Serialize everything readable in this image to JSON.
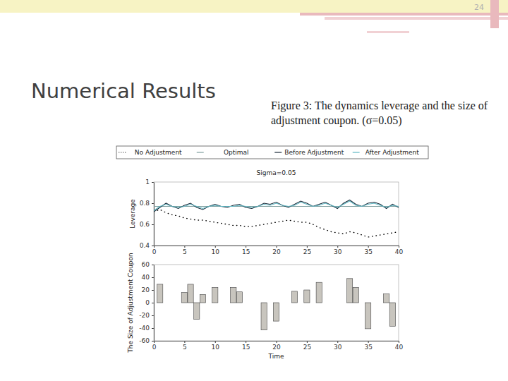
{
  "slide": {
    "title": "Numerical Results",
    "caption": "Figure 3: The dynamics leverage and the size of adjustment coupon. (σ=0.05)",
    "page": "24"
  },
  "chart_data": [
    {
      "type": "line",
      "title": "Sigma=0.05",
      "ylabel": "Leverage",
      "legend": "top",
      "x": [
        0,
        1,
        2,
        3,
        4,
        5,
        6,
        7,
        8,
        9,
        10,
        11,
        12,
        13,
        14,
        15,
        16,
        17,
        18,
        19,
        20,
        21,
        22,
        23,
        24,
        25,
        26,
        27,
        28,
        29,
        30,
        31,
        32,
        33,
        34,
        35,
        36,
        37,
        38,
        39,
        40
      ],
      "xlim": [
        0,
        40
      ],
      "xticks": [
        0,
        5,
        10,
        15,
        20,
        25,
        30,
        35,
        40
      ],
      "ylim": [
        0.4,
        1
      ],
      "yticks": [
        0.4,
        0.6,
        0.8,
        1
      ],
      "series": [
        {
          "name": "No Adjustment",
          "color": "#000000",
          "line_style": "dotted",
          "values": [
            0.72,
            0.74,
            0.71,
            0.69,
            0.68,
            0.66,
            0.65,
            0.64,
            0.64,
            0.63,
            0.62,
            0.61,
            0.6,
            0.59,
            0.59,
            0.58,
            0.58,
            0.59,
            0.6,
            0.61,
            0.62,
            0.63,
            0.64,
            0.63,
            0.62,
            0.62,
            0.6,
            0.57,
            0.55,
            0.53,
            0.52,
            0.51,
            0.53,
            0.52,
            0.5,
            0.48,
            0.49,
            0.5,
            0.51,
            0.52,
            0.53
          ]
        },
        {
          "name": "Optimal",
          "color": "#7f9f9f",
          "line_style": "solid",
          "values": [
            0.77,
            0.77,
            0.77,
            0.77,
            0.77,
            0.77,
            0.77,
            0.77,
            0.77,
            0.77,
            0.77,
            0.77,
            0.77,
            0.77,
            0.77,
            0.77,
            0.77,
            0.77,
            0.77,
            0.77,
            0.77,
            0.77,
            0.77,
            0.77,
            0.77,
            0.77,
            0.77,
            0.77,
            0.77,
            0.77,
            0.77,
            0.77,
            0.77,
            0.77,
            0.77,
            0.77,
            0.77,
            0.77,
            0.77,
            0.77,
            0.77
          ]
        },
        {
          "name": "Before Adjustment",
          "color": "#1c2b3a",
          "line_style": "solid",
          "values": [
            0.72,
            0.76,
            0.8,
            0.77,
            0.75,
            0.78,
            0.8,
            0.76,
            0.74,
            0.77,
            0.79,
            0.77,
            0.76,
            0.78,
            0.79,
            0.76,
            0.75,
            0.77,
            0.8,
            0.79,
            0.81,
            0.78,
            0.76,
            0.79,
            0.82,
            0.8,
            0.77,
            0.79,
            0.81,
            0.78,
            0.75,
            0.8,
            0.83,
            0.79,
            0.77,
            0.8,
            0.81,
            0.79,
            0.75,
            0.79,
            0.76
          ]
        },
        {
          "name": "After Adjustment",
          "color": "#5fb8c4",
          "line_style": "solid",
          "values": [
            0.73,
            0.77,
            0.79,
            0.77,
            0.76,
            0.77,
            0.79,
            0.77,
            0.75,
            0.77,
            0.78,
            0.77,
            0.77,
            0.77,
            0.78,
            0.77,
            0.76,
            0.77,
            0.79,
            0.78,
            0.8,
            0.78,
            0.77,
            0.78,
            0.81,
            0.79,
            0.77,
            0.78,
            0.8,
            0.78,
            0.76,
            0.79,
            0.82,
            0.78,
            0.77,
            0.79,
            0.8,
            0.78,
            0.76,
            0.78,
            0.77
          ]
        }
      ]
    },
    {
      "type": "bar",
      "xlabel": "Time",
      "ylabel": "The Size of Adjustment Coupon",
      "color": "#c8c5be",
      "x": [
        1,
        5,
        6,
        7,
        8,
        10,
        13,
        14,
        18,
        20,
        23,
        25,
        27,
        32,
        33,
        35,
        38,
        39
      ],
      "values": [
        29,
        16,
        29,
        -26,
        13,
        24,
        24,
        17,
        -43,
        -29,
        18,
        20,
        32,
        38,
        24,
        -41,
        14,
        -37
      ],
      "xlim": [
        0,
        40
      ],
      "xticks": [
        0,
        5,
        10,
        15,
        20,
        25,
        30,
        35,
        40
      ],
      "ylim": [
        -60,
        60
      ],
      "yticks": [
        -60,
        -40,
        -20,
        0,
        20,
        40,
        60
      ]
    }
  ]
}
